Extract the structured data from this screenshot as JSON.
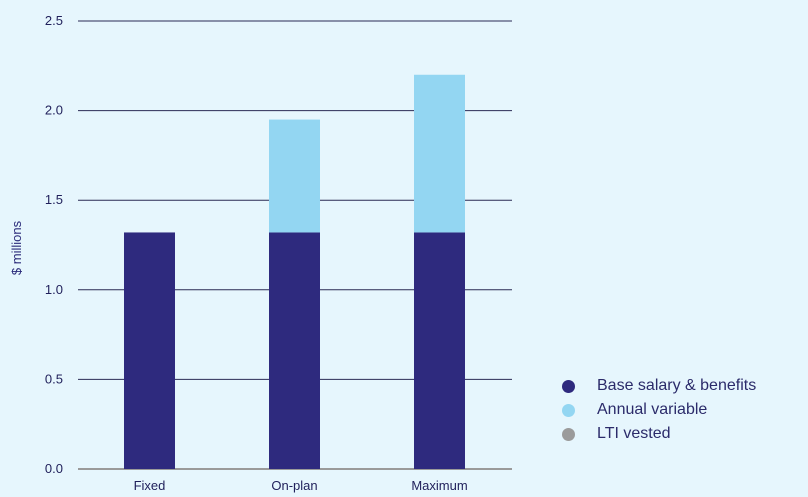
{
  "chart_data": {
    "type": "bar",
    "stacked": true,
    "categories": [
      "Fixed",
      "On-plan",
      "Maximum"
    ],
    "ylabel": "$ millions",
    "ylim": [
      0,
      2.5
    ],
    "yticks": [
      "0.0",
      "0.5",
      "1.0",
      "1.5",
      "2.0",
      "2.5"
    ],
    "grid": true,
    "legend_position": "bottom-right",
    "series": [
      {
        "name": "Base salary & benefits",
        "color": "#2e2a7e",
        "values": [
          1.32,
          1.32,
          1.32
        ]
      },
      {
        "name": "Annual variable",
        "color": "#93d6f2",
        "values": [
          0,
          0.63,
          0.88
        ]
      },
      {
        "name": "LTI vested",
        "color": "#9b9b9b",
        "values": [
          0,
          0,
          0
        ]
      }
    ]
  }
}
